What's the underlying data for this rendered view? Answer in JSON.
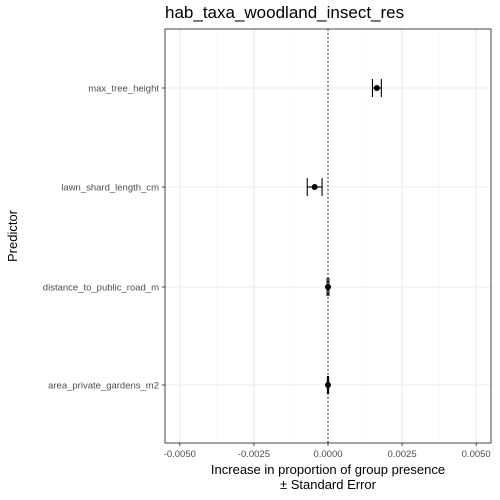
{
  "chart_data": {
    "type": "scatter",
    "title": "hab_taxa_woodland_insect_res",
    "xlabel_line1": "Increase in proportion of group presence",
    "xlabel_line2": "± Standard Error",
    "ylabel": "Predictor",
    "xlim": [
      -0.0055,
      0.0055
    ],
    "x_ticks": [
      -0.005,
      -0.0025,
      0.0,
      0.0025,
      0.005
    ],
    "x_tick_labels": [
      "-0.0050",
      "-0.0025",
      "0.0000",
      "0.0025",
      "0.0050"
    ],
    "reference_line_x": 0.0,
    "grid": true,
    "categories": [
      "max_tree_height",
      "lawn_shard_length_cm",
      "distance_to_public_road_m",
      "area_private_gardens_m2"
    ],
    "points": [
      {
        "predictor": "max_tree_height",
        "estimate": 0.00165,
        "se": 0.00015
      },
      {
        "predictor": "lawn_shard_length_cm",
        "estimate": -0.00045,
        "se": 0.00025
      },
      {
        "predictor": "distance_to_public_road_m",
        "estimate": 0.0,
        "se": 3e-05
      },
      {
        "predictor": "area_private_gardens_m2",
        "estimate": 0.0,
        "se": 2e-05
      }
    ],
    "colors": {
      "panel_border": "#333333",
      "grid_major": "#ebebeb",
      "grid_minor": "#f5f5f5",
      "point": "#000000",
      "reference_line": "#000000"
    }
  }
}
